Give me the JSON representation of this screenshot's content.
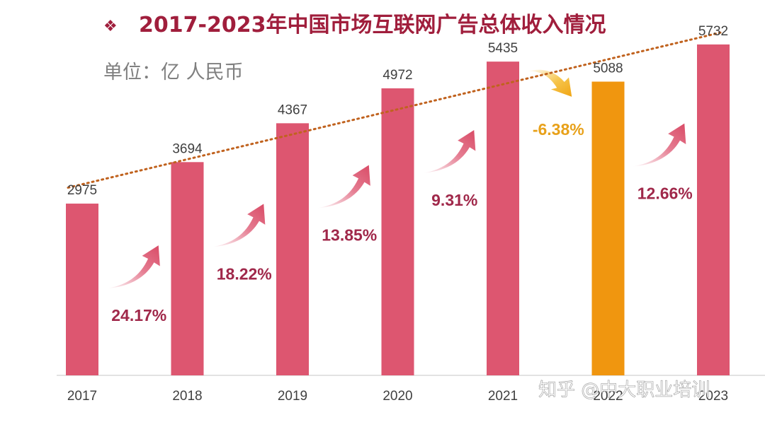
{
  "title": "2017-2023年中国市场互联网广告总体收入情况",
  "title_marker": "❖",
  "unit_label": "单位：亿 人民币",
  "watermark": "知乎 @中大职业培训",
  "colors": {
    "bar": "#dd5670",
    "highlight_bar": "#f0960f",
    "title": "#a01e3c",
    "growth_text": "#a0284a",
    "decline_text": "#e8a11a",
    "trend_line": "#c0621e",
    "unit_text": "#7f7f7f"
  },
  "chart_data": {
    "type": "bar",
    "categories": [
      "2017",
      "2018",
      "2019",
      "2020",
      "2021",
      "2022",
      "2023"
    ],
    "values": [
      2975,
      3694,
      4367,
      4972,
      5435,
      5088,
      5732
    ],
    "value_labels": [
      "2975",
      "3694",
      "4367",
      "4972",
      "5435",
      "5088",
      "5732"
    ],
    "highlight_index": 5,
    "growth_rates": [
      {
        "label": "24.17%",
        "direction": "up"
      },
      {
        "label": "18.22%",
        "direction": "up"
      },
      {
        "label": "13.85%",
        "direction": "up"
      },
      {
        "label": "9.31%",
        "direction": "up"
      },
      {
        "label": "-6.38%",
        "direction": "down"
      },
      {
        "label": "12.66%",
        "direction": "up"
      }
    ],
    "trendline": "linear",
    "ylim": [
      0,
      6000
    ],
    "grid": false,
    "legend": "none"
  }
}
